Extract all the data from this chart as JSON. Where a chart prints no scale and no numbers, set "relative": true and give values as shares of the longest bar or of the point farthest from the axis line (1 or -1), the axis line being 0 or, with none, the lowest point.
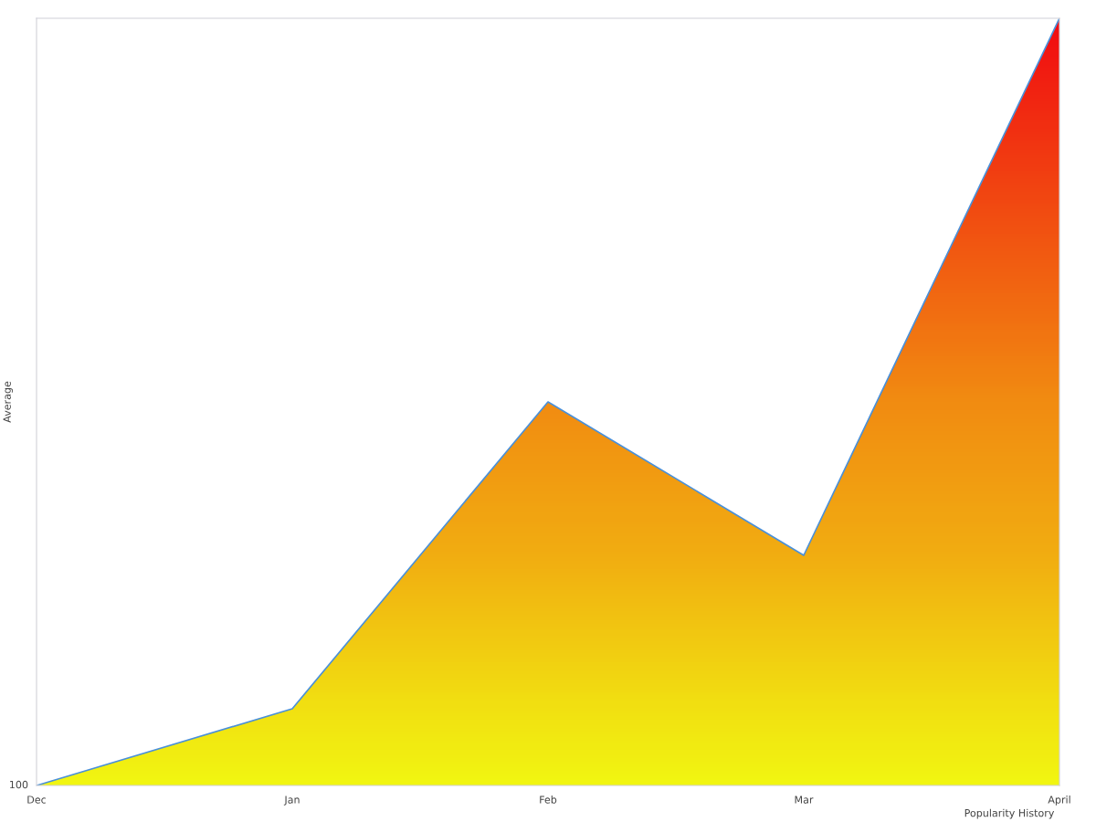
{
  "chart_data": {
    "type": "area",
    "relative": true,
    "xlabel": "Popularity History",
    "ylabel": "Average",
    "categories": [
      "Dec",
      "Jan",
      "Feb",
      "Mar",
      "April"
    ],
    "series": [
      {
        "color": "#4a90d9",
        "values": [
          0,
          0.1,
          0.5,
          0.3,
          1
        ],
        "colors": [
          "#ffff00",
          "#ffe800",
          "#ff8c00",
          "#ffb000",
          "#ff0000"
        ]
      }
    ],
    "annotations": [
      "100"
    ],
    "grid": false,
    "legend": false
  }
}
